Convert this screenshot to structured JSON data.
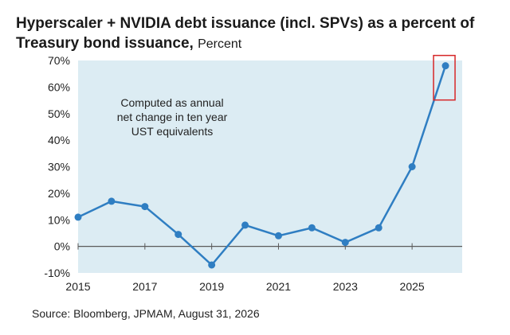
{
  "chart_data": {
    "type": "line",
    "title": "Hyperscaler + NVIDIA debt issuance (incl. SPVs) as a percent of Treasury bond issuance,",
    "unit_label": "Percent",
    "annotation": [
      "Computed as annual",
      "net change in ten year",
      "UST equivalents"
    ],
    "source": "Source: Bloomberg, JPMAM, August 31, 2026",
    "x": [
      2015,
      2016,
      2017,
      2018,
      2019,
      2020,
      2021,
      2022,
      2023,
      2024,
      2025,
      2026
    ],
    "values": [
      11,
      17,
      15,
      4.5,
      -7,
      8,
      4,
      7,
      1.5,
      7,
      30,
      68
    ],
    "xlim": [
      2015,
      2026.5
    ],
    "ylim": [
      -10,
      70
    ],
    "xticks": [
      2015,
      2017,
      2019,
      2021,
      2023,
      2025
    ],
    "xtick_labels": [
      "2015",
      "2017",
      "2019",
      "2021",
      "2023",
      "2025"
    ],
    "yticks": [
      -10,
      0,
      10,
      20,
      30,
      40,
      50,
      60,
      70
    ],
    "ytick_labels": [
      "-10%",
      "0%",
      "10%",
      "20%",
      "30%",
      "40%",
      "50%",
      "60%",
      "70%"
    ],
    "highlight_index": 11,
    "grid": false,
    "colors": {
      "line": "#2f7ec2",
      "marker": "#2f7ec2",
      "plot_bg": "#dcecf3",
      "zero_line": "#5a5a5a",
      "highlight": "#d62728"
    }
  }
}
